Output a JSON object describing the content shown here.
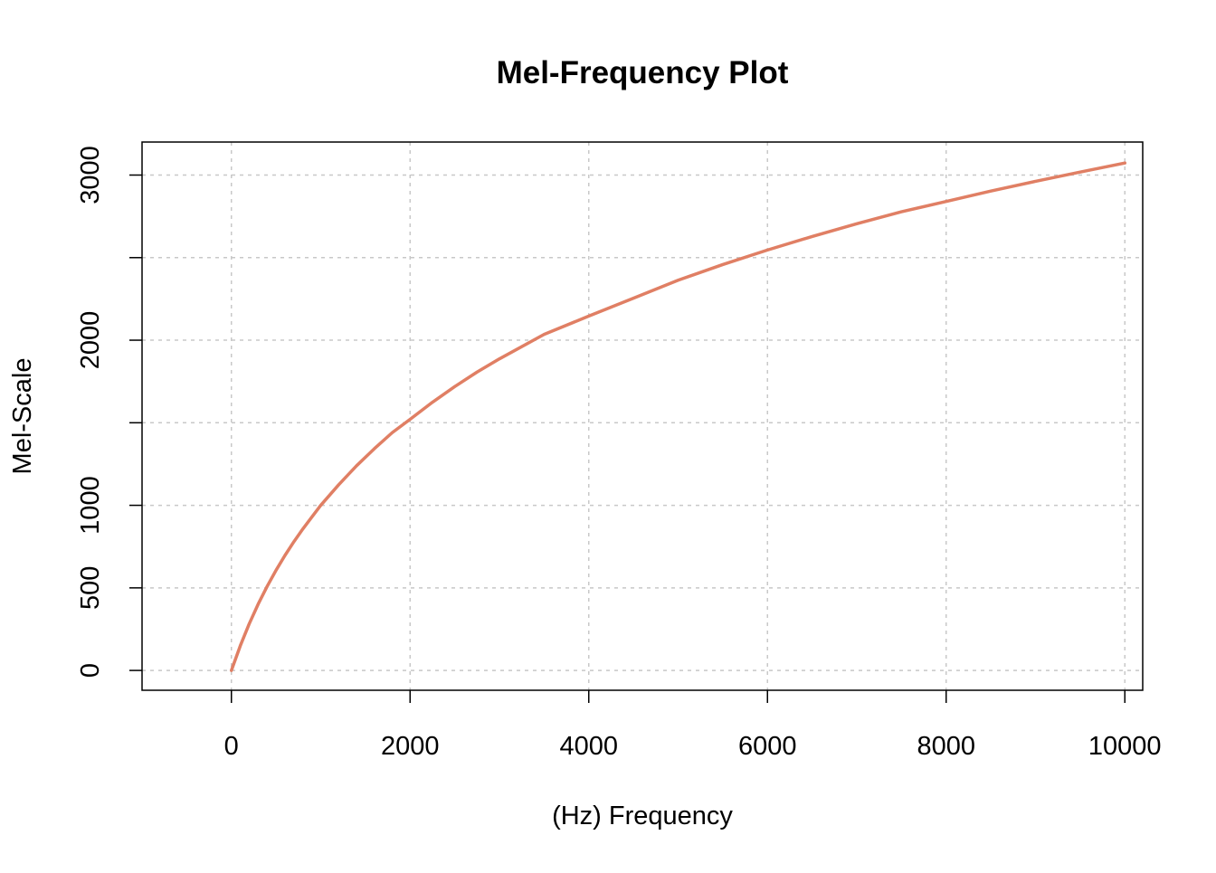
{
  "chart_data": {
    "type": "line",
    "title": "Mel-Frequency Plot",
    "xlabel": "(Hz) Frequency",
    "ylabel": "Mel-Scale",
    "xlim": [
      -1000,
      10200
    ],
    "ylim": [
      -120,
      3200
    ],
    "x_ticks": [
      0,
      2000,
      4000,
      6000,
      8000,
      10000
    ],
    "x_tick_labels": [
      "0",
      "2000",
      "4000",
      "6000",
      "8000",
      "10000"
    ],
    "y_ticks": [
      0,
      500,
      1000,
      1500,
      2000,
      2500,
      3000
    ],
    "y_tick_labels": [
      "0",
      "500",
      "1000",
      "",
      "2000",
      "",
      "3000"
    ],
    "grid": true,
    "line_color": "#E07F64",
    "series": [
      {
        "x": [
          0,
          100,
          200,
          300,
          400,
          500,
          600,
          700,
          800,
          900,
          1000,
          1200,
          1400,
          1600,
          1800,
          2000,
          2250,
          2500,
          2750,
          3000,
          3500,
          4000,
          4500,
          5000,
          5500,
          6000,
          6500,
          7000,
          7500,
          8000,
          8500,
          9000,
          9500,
          10000
        ],
        "values": [
          0,
          150,
          283,
          402,
          509,
          607,
          697,
          780,
          857,
          929,
          1000,
          1124,
          1239,
          1343,
          1440,
          1521,
          1624,
          1719,
          1807,
          1887,
          2035,
          2146,
          2254,
          2363,
          2458,
          2546,
          2628,
          2705,
          2778,
          2840,
          2903,
          2962,
          3018,
          3073
        ]
      }
    ]
  }
}
